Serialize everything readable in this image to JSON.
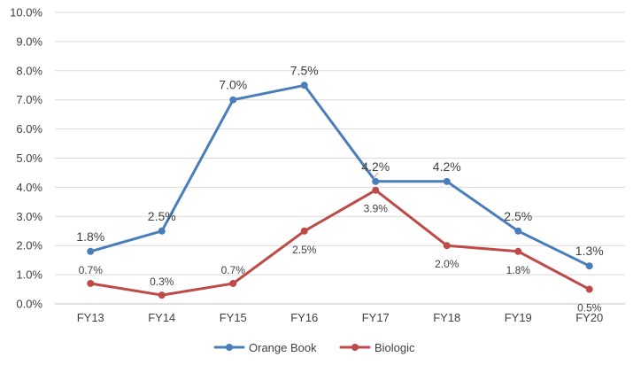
{
  "chart_data": {
    "type": "line",
    "categories": [
      "FY13",
      "FY14",
      "FY15",
      "FY16",
      "FY17",
      "FY18",
      "FY19",
      "FY20"
    ],
    "series": [
      {
        "name": "Orange Book",
        "color": "#4a7ebb",
        "values": [
          1.8,
          2.5,
          7.0,
          7.5,
          4.2,
          4.2,
          2.5,
          1.3
        ],
        "labels": [
          "1.8%",
          "2.5%",
          "7.0%",
          "7.5%",
          "4.2%",
          "4.2%",
          "2.5%",
          "1.3%"
        ]
      },
      {
        "name": "Biologic",
        "color": "#be4b48",
        "values": [
          0.7,
          0.3,
          0.7,
          2.5,
          3.9,
          2.0,
          1.8,
          0.5
        ],
        "labels": [
          "0.7%",
          "0.3%",
          "0.7%",
          "2.5%",
          "3.9%",
          "2.0%",
          "1.8%",
          "0.5%"
        ]
      }
    ],
    "yticks": [
      "0.0%",
      "1.0%",
      "2.0%",
      "3.0%",
      "4.0%",
      "5.0%",
      "6.0%",
      "7.0%",
      "8.0%",
      "9.0%",
      "10.0%"
    ],
    "ylim": [
      0,
      10
    ],
    "grid": true,
    "legend_position": "bottom",
    "title": "",
    "xlabel": "",
    "ylabel": ""
  }
}
